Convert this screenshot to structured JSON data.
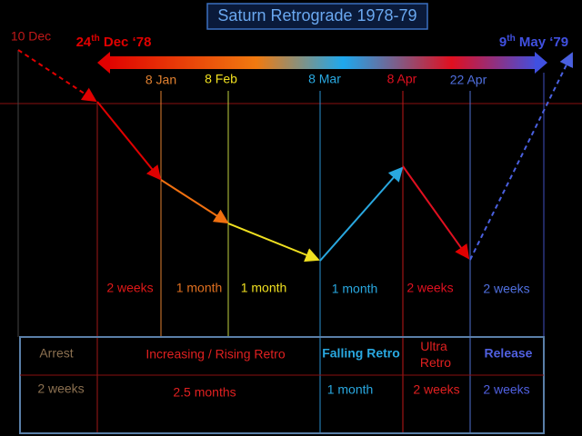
{
  "title": "Saturn Retrograde 1978-79",
  "start_label": "10 Dec",
  "station_retro": {
    "day": "24",
    "suffix": "th",
    "rest": " Dec ‘78"
  },
  "station_direct": {
    "day": "9",
    "suffix": "th",
    "rest": " May ‘79"
  },
  "dates": [
    "8 Jan",
    "8 Feb",
    "8 Mar",
    "8 Apr",
    "22 Apr"
  ],
  "durations": [
    "2 weeks",
    "1 month",
    "1 month",
    "1 month",
    "2 weeks",
    "2 weeks"
  ],
  "table": {
    "rows": [
      [
        "Arrest",
        "Increasing / Rising Retro",
        "Falling Retro",
        "Ultra Retro",
        "Release"
      ],
      [
        "2 weeks",
        "2.5 months",
        "1 month",
        "2 weeks",
        "2 weeks"
      ]
    ]
  }
}
